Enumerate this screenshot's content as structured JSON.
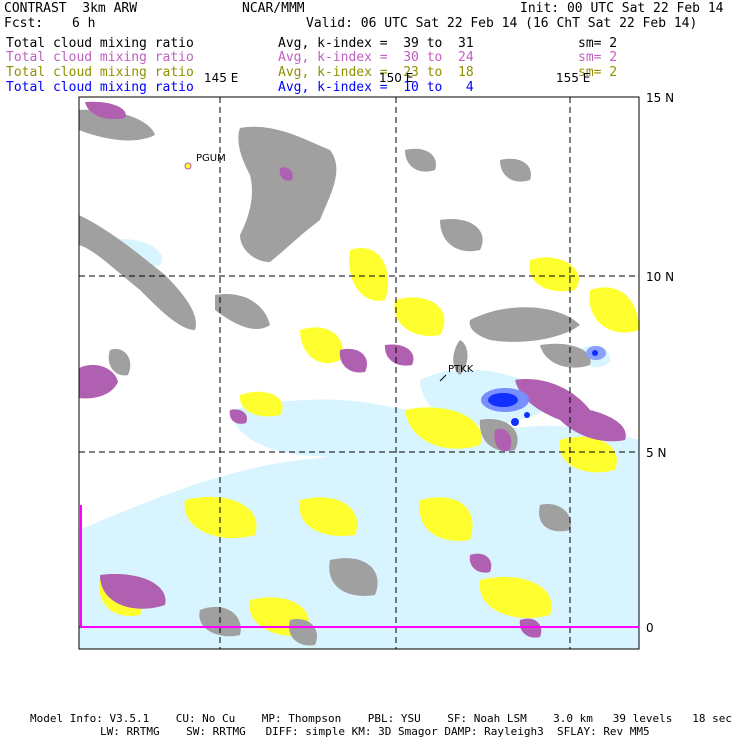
{
  "header": {
    "model": "CONTRAST  3km ARW",
    "org": "NCAR/MMM",
    "init": "Init: 00 UTC Sat 22 Feb 14",
    "fcst_label": "Fcst:",
    "fcst_value": "6 h",
    "valid": "Valid: 06 UTC Sat 22 Feb 14 (16 ChT Sat 22 Feb 14)"
  },
  "colors": {
    "field1": "#000000",
    "field2": "#c060c0",
    "field3": "#909000",
    "field4": "#0000ff",
    "gray": "#a0a0a0",
    "purple": "#b060b0",
    "yellow": "#ffff30",
    "lightcyan": "#d8f4ff",
    "blue": "#1030ff",
    "magenta_line": "#ff00ff"
  },
  "fields": [
    {
      "name": "Total cloud mixing ratio",
      "desc": "Avg, k-index =  39 to  31",
      "sm": "sm= 2"
    },
    {
      "name": "Total cloud mixing ratio",
      "desc": "Avg, k-index =  30 to  24",
      "sm": "sm= 2"
    },
    {
      "name": "Total cloud mixing ratio",
      "desc": "Avg, k-index =  23 to  18",
      "sm": "sm= 2"
    },
    {
      "name": "Total cloud mixing ratio",
      "desc": "Avg, k-index =  10 to   4",
      "sm": ""
    }
  ],
  "map": {
    "lon_labels": [
      "145 E",
      "150 E",
      "155 E"
    ],
    "lat_labels": [
      "15 N",
      "10 N",
      "5 N",
      "0"
    ],
    "stations": [
      "PGUM",
      "PTKK"
    ]
  },
  "footer": {
    "line1": "Model Info: V3.5.1    CU: No Cu    MP: Thompson    PBL: YSU    SF: Noah LSM    3.0 km   39 levels   18 sec",
    "line2": "LW: RRTMG    SW: RRTMG   DIFF: simple KM: 3D Smagor DAMP: Rayleigh3  SFLAY: Rev MM5"
  }
}
